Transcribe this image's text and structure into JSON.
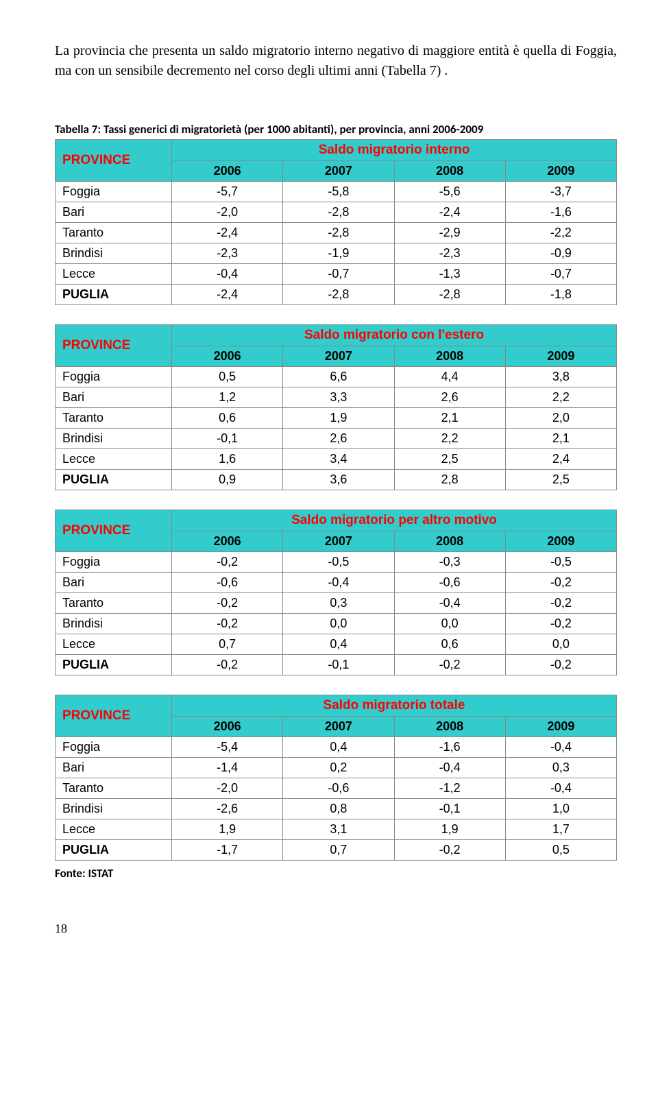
{
  "intro": "La provincia che presenta un saldo migratorio interno negativo di maggiore entità è quella di Foggia, ma con un sensibile decremento nel corso degli ultimi anni (Tabella 7) .",
  "caption": "Tabella 7: Tassi generici di migratorietà (per 1000 abitanti), per provincia, anni 2006-2009",
  "provinces_label": "PROVINCE",
  "years": [
    "2006",
    "2007",
    "2008",
    "2009"
  ],
  "tables": [
    {
      "title": "Saldo migratorio interno",
      "rows": [
        {
          "label": "Foggia",
          "v": [
            "-5,7",
            "-5,8",
            "-5,6",
            "-3,7"
          ],
          "total": false
        },
        {
          "label": "Bari",
          "v": [
            "-2,0",
            "-2,8",
            "-2,4",
            "-1,6"
          ],
          "total": false
        },
        {
          "label": "Taranto",
          "v": [
            "-2,4",
            "-2,8",
            "-2,9",
            "-2,2"
          ],
          "total": false
        },
        {
          "label": "Brindisi",
          "v": [
            "-2,3",
            "-1,9",
            "-2,3",
            "-0,9"
          ],
          "total": false
        },
        {
          "label": "Lecce",
          "v": [
            "-0,4",
            "-0,7",
            "-1,3",
            "-0,7"
          ],
          "total": false
        },
        {
          "label": "PUGLIA",
          "v": [
            "-2,4",
            "-2,8",
            "-2,8",
            "-1,8"
          ],
          "total": true
        }
      ]
    },
    {
      "title": "Saldo migratorio con l'estero",
      "rows": [
        {
          "label": "Foggia",
          "v": [
            "0,5",
            "6,6",
            "4,4",
            "3,8"
          ],
          "total": false
        },
        {
          "label": "Bari",
          "v": [
            "1,2",
            "3,3",
            "2,6",
            "2,2"
          ],
          "total": false
        },
        {
          "label": "Taranto",
          "v": [
            "0,6",
            "1,9",
            "2,1",
            "2,0"
          ],
          "total": false
        },
        {
          "label": "Brindisi",
          "v": [
            "-0,1",
            "2,6",
            "2,2",
            "2,1"
          ],
          "total": false
        },
        {
          "label": "Lecce",
          "v": [
            "1,6",
            "3,4",
            "2,5",
            "2,4"
          ],
          "total": false
        },
        {
          "label": "PUGLIA",
          "v": [
            "0,9",
            "3,6",
            "2,8",
            "2,5"
          ],
          "total": true
        }
      ]
    },
    {
      "title": "Saldo migratorio per altro motivo",
      "rows": [
        {
          "label": "Foggia",
          "v": [
            "-0,2",
            "-0,5",
            "-0,3",
            "-0,5"
          ],
          "total": false
        },
        {
          "label": "Bari",
          "v": [
            "-0,6",
            "-0,4",
            "-0,6",
            "-0,2"
          ],
          "total": false
        },
        {
          "label": "Taranto",
          "v": [
            "-0,2",
            "0,3",
            "-0,4",
            "-0,2"
          ],
          "total": false
        },
        {
          "label": "Brindisi",
          "v": [
            "-0,2",
            "0,0",
            "0,0",
            "-0,2"
          ],
          "total": false
        },
        {
          "label": "Lecce",
          "v": [
            "0,7",
            "0,4",
            "0,6",
            "0,0"
          ],
          "total": false
        },
        {
          "label": "PUGLIA",
          "v": [
            "-0,2",
            "-0,1",
            "-0,2",
            "-0,2"
          ],
          "total": true
        }
      ]
    },
    {
      "title": "Saldo migratorio totale",
      "rows": [
        {
          "label": "Foggia",
          "v": [
            "-5,4",
            "0,4",
            "-1,6",
            "-0,4"
          ],
          "total": false
        },
        {
          "label": "Bari",
          "v": [
            "-1,4",
            "0,2",
            "-0,4",
            "0,3"
          ],
          "total": false
        },
        {
          "label": "Taranto",
          "v": [
            "-2,0",
            "-0,6",
            "-1,2",
            "-0,4"
          ],
          "total": false
        },
        {
          "label": "Brindisi",
          "v": [
            "-2,6",
            "0,8",
            "-0,1",
            "1,0"
          ],
          "total": false
        },
        {
          "label": "Lecce",
          "v": [
            "1,9",
            "3,1",
            "1,9",
            "1,7"
          ],
          "total": false
        },
        {
          "label": "PUGLIA",
          "v": [
            "-1,7",
            "0,7",
            "-0,2",
            "0,5"
          ],
          "total": true
        }
      ]
    }
  ],
  "source": "Fonte: ISTAT",
  "page_number": "18",
  "colors": {
    "header_bg": "#33cccc",
    "header_text": "#ff0000",
    "border": "#888888",
    "body_text": "#000000",
    "background": "#ffffff"
  },
  "fonts": {
    "body": "Times New Roman",
    "table": "Arial",
    "caption": "Calibri"
  }
}
